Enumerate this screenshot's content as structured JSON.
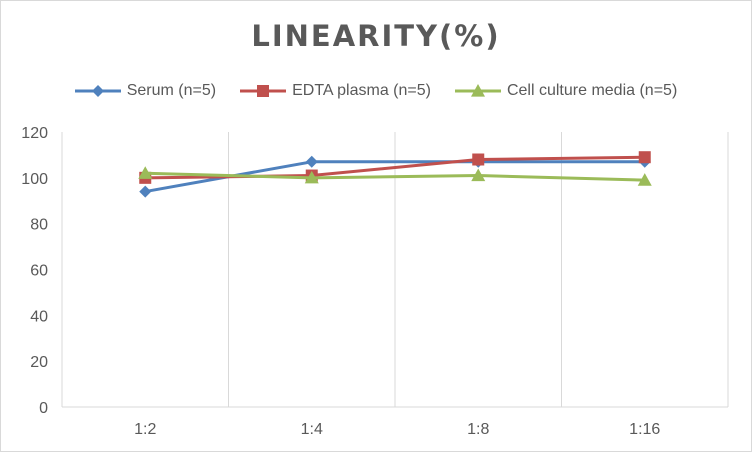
{
  "chart_data": {
    "type": "line",
    "title": "LINEARITY(%)",
    "xlabel": "",
    "ylabel": "",
    "categories": [
      "1:2",
      "1:4",
      "1:8",
      "1:16"
    ],
    "ylim": [
      0,
      120
    ],
    "yticks": [
      0,
      20,
      40,
      60,
      80,
      100,
      120
    ],
    "grid": "vertical",
    "legend": "top",
    "series": [
      {
        "name": "Serum (n=5)",
        "values": [
          94,
          107,
          107,
          107
        ],
        "color": "#4f81bd",
        "marker": "diamond"
      },
      {
        "name": "EDTA plasma (n=5)",
        "values": [
          100,
          101,
          108,
          109
        ],
        "color": "#c0504d",
        "marker": "square"
      },
      {
        "name": "Cell culture media (n=5)",
        "values": [
          102,
          100,
          101,
          99
        ],
        "color": "#9bbb59",
        "marker": "triangle"
      }
    ]
  }
}
